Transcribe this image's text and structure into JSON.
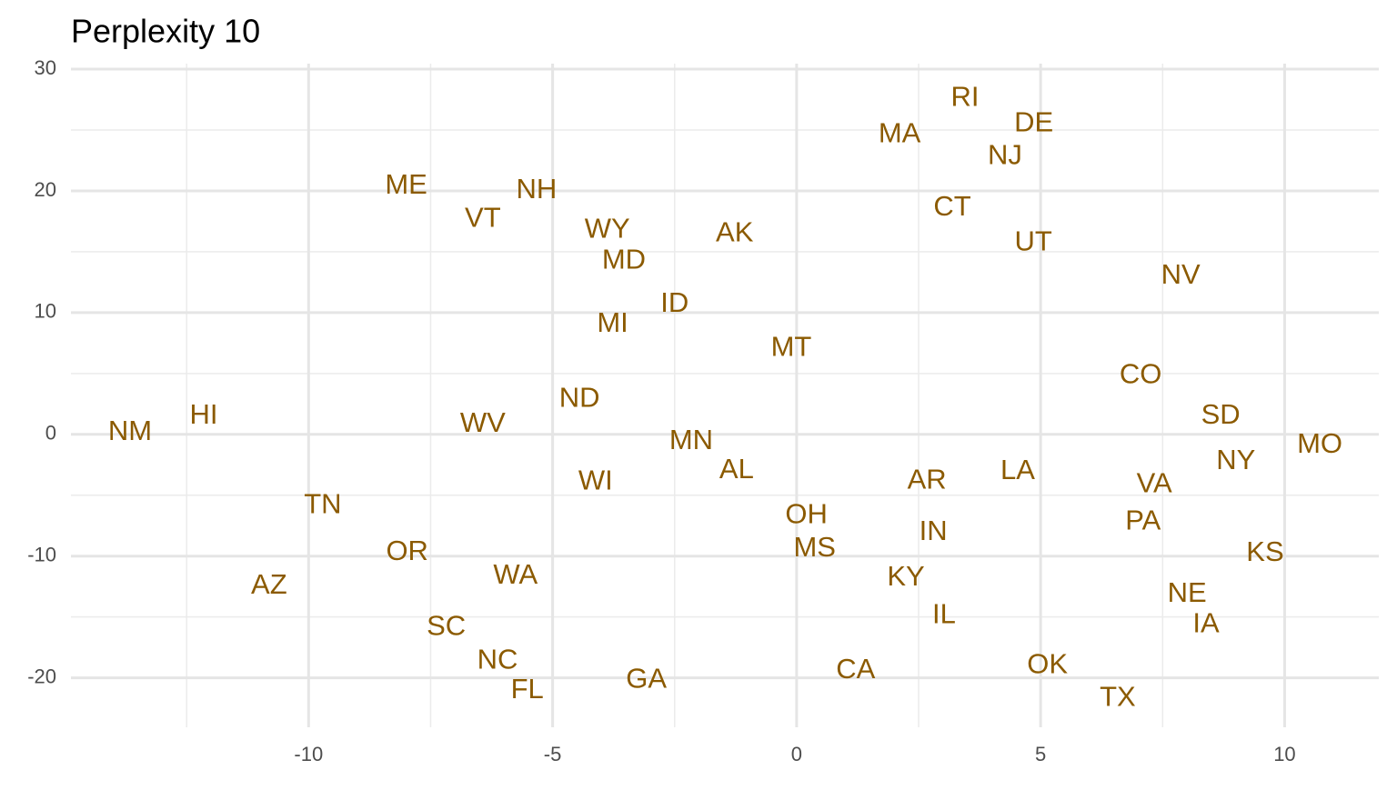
{
  "chart_data": {
    "type": "scatter",
    "title": "Perplexity 10",
    "color": "#8B5A00",
    "labels": [
      "NM",
      "HI",
      "TN",
      "AZ",
      "OR",
      "SC",
      "NC",
      "FL",
      "WA",
      "WV",
      "ME",
      "VT",
      "NH",
      "WY",
      "MD",
      "MI",
      "ID",
      "AK",
      "MT",
      "ND",
      "WI",
      "MN",
      "AL",
      "GA",
      "OH",
      "MS",
      "CA",
      "AR",
      "IN",
      "KY",
      "IL",
      "LA",
      "OK",
      "TX",
      "MA",
      "RI",
      "DE",
      "NJ",
      "CT",
      "UT",
      "NV",
      "CO",
      "SD",
      "MO",
      "NY",
      "VA",
      "PA",
      "KS",
      "NE",
      "IA"
    ],
    "x": [
      -13.66,
      -12.15,
      -9.71,
      -10.81,
      -7.98,
      -7.18,
      -6.13,
      -5.52,
      -5.76,
      -6.43,
      -8.0,
      -6.43,
      -5.33,
      -3.88,
      -3.54,
      -3.77,
      -2.5,
      -1.27,
      -0.11,
      -4.45,
      -4.12,
      -2.16,
      -1.23,
      -3.08,
      0.2,
      0.37,
      1.21,
      2.67,
      2.8,
      2.24,
      3.02,
      4.53,
      5.14,
      6.58,
      2.11,
      3.45,
      4.86,
      4.27,
      3.19,
      4.85,
      7.87,
      7.05,
      8.69,
      10.72,
      9.0,
      7.33,
      7.1,
      9.6,
      8.0,
      8.39
    ],
    "values": [
      0.15,
      1.5,
      -5.86,
      -12.48,
      -9.7,
      -15.86,
      -18.65,
      -21.05,
      -11.65,
      0.83,
      20.38,
      17.67,
      20.0,
      16.77,
      14.21,
      9.02,
      10.68,
      16.47,
      7.07,
      2.86,
      -3.91,
      -0.6,
      -3.0,
      -20.2,
      -6.7,
      -9.4,
      -19.4,
      -3.83,
      -8.05,
      -11.8,
      -14.9,
      -3.08,
      -19.0,
      -21.7,
      24.6,
      27.6,
      25.5,
      22.8,
      18.6,
      15.7,
      13.0,
      4.8,
      1.5,
      -0.9,
      -2.26,
      -4.14,
      -7.22,
      -9.77,
      -13.16,
      -15.64
    ],
    "xlim": [
      -14.87,
      11.93
    ],
    "ylim": [
      -24.06,
      30.45
    ],
    "xticks": [
      -10,
      -5,
      0,
      5,
      10
    ],
    "yticks": [
      -20,
      -10,
      0,
      10,
      20,
      30
    ],
    "grid": true
  }
}
